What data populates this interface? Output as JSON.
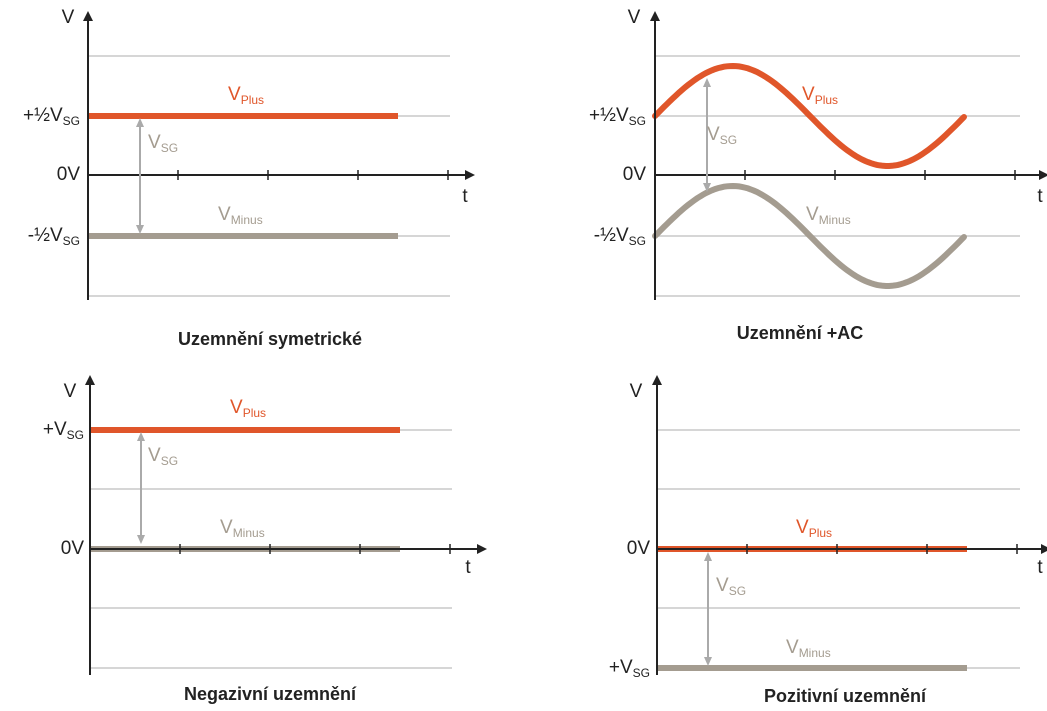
{
  "panels": [
    {
      "caption": "Uzemnění symetrické",
      "axis_y": "V",
      "axis_x": "t",
      "levels": [
        {
          "main": "+½V",
          "sub": "SG"
        },
        {
          "main": "0V"
        },
        {
          "main": "-½V",
          "sub": "SG"
        }
      ],
      "plus_label": {
        "main": "V",
        "sub": "Plus"
      },
      "minus_label": {
        "main": "V",
        "sub": "Minus"
      },
      "vsg_label": {
        "main": "V",
        "sub": "SG"
      }
    },
    {
      "caption": "Uzemnění +AC",
      "axis_y": "V",
      "axis_x": "t",
      "levels": [
        {
          "main": "+½V",
          "sub": "SG"
        },
        {
          "main": "0V"
        },
        {
          "main": "-½V",
          "sub": "SG"
        }
      ],
      "plus_label": {
        "main": "V",
        "sub": "Plus"
      },
      "minus_label": {
        "main": "V",
        "sub": "Minus"
      },
      "vsg_label": {
        "main": "V",
        "sub": "SG"
      }
    },
    {
      "caption": "Negazivní uzemnění",
      "axis_y": "V",
      "axis_x": "t",
      "levels": [
        {
          "main": "+V",
          "sub": "SG"
        },
        {
          "main": "0V"
        }
      ],
      "plus_label": {
        "main": "V",
        "sub": "Plus"
      },
      "minus_label": {
        "main": "V",
        "sub": "Minus"
      },
      "vsg_label": {
        "main": "V",
        "sub": "SG"
      }
    },
    {
      "caption": "Pozitivní uzemnění",
      "axis_y": "V",
      "axis_x": "t",
      "levels": [
        {
          "main": "0V"
        },
        {
          "main": "+V",
          "sub": "SG"
        }
      ],
      "plus_label": {
        "main": "V",
        "sub": "Plus"
      },
      "minus_label": {
        "main": "V",
        "sub": "Minus"
      },
      "vsg_label": {
        "main": "V",
        "sub": "SG"
      }
    }
  ]
}
